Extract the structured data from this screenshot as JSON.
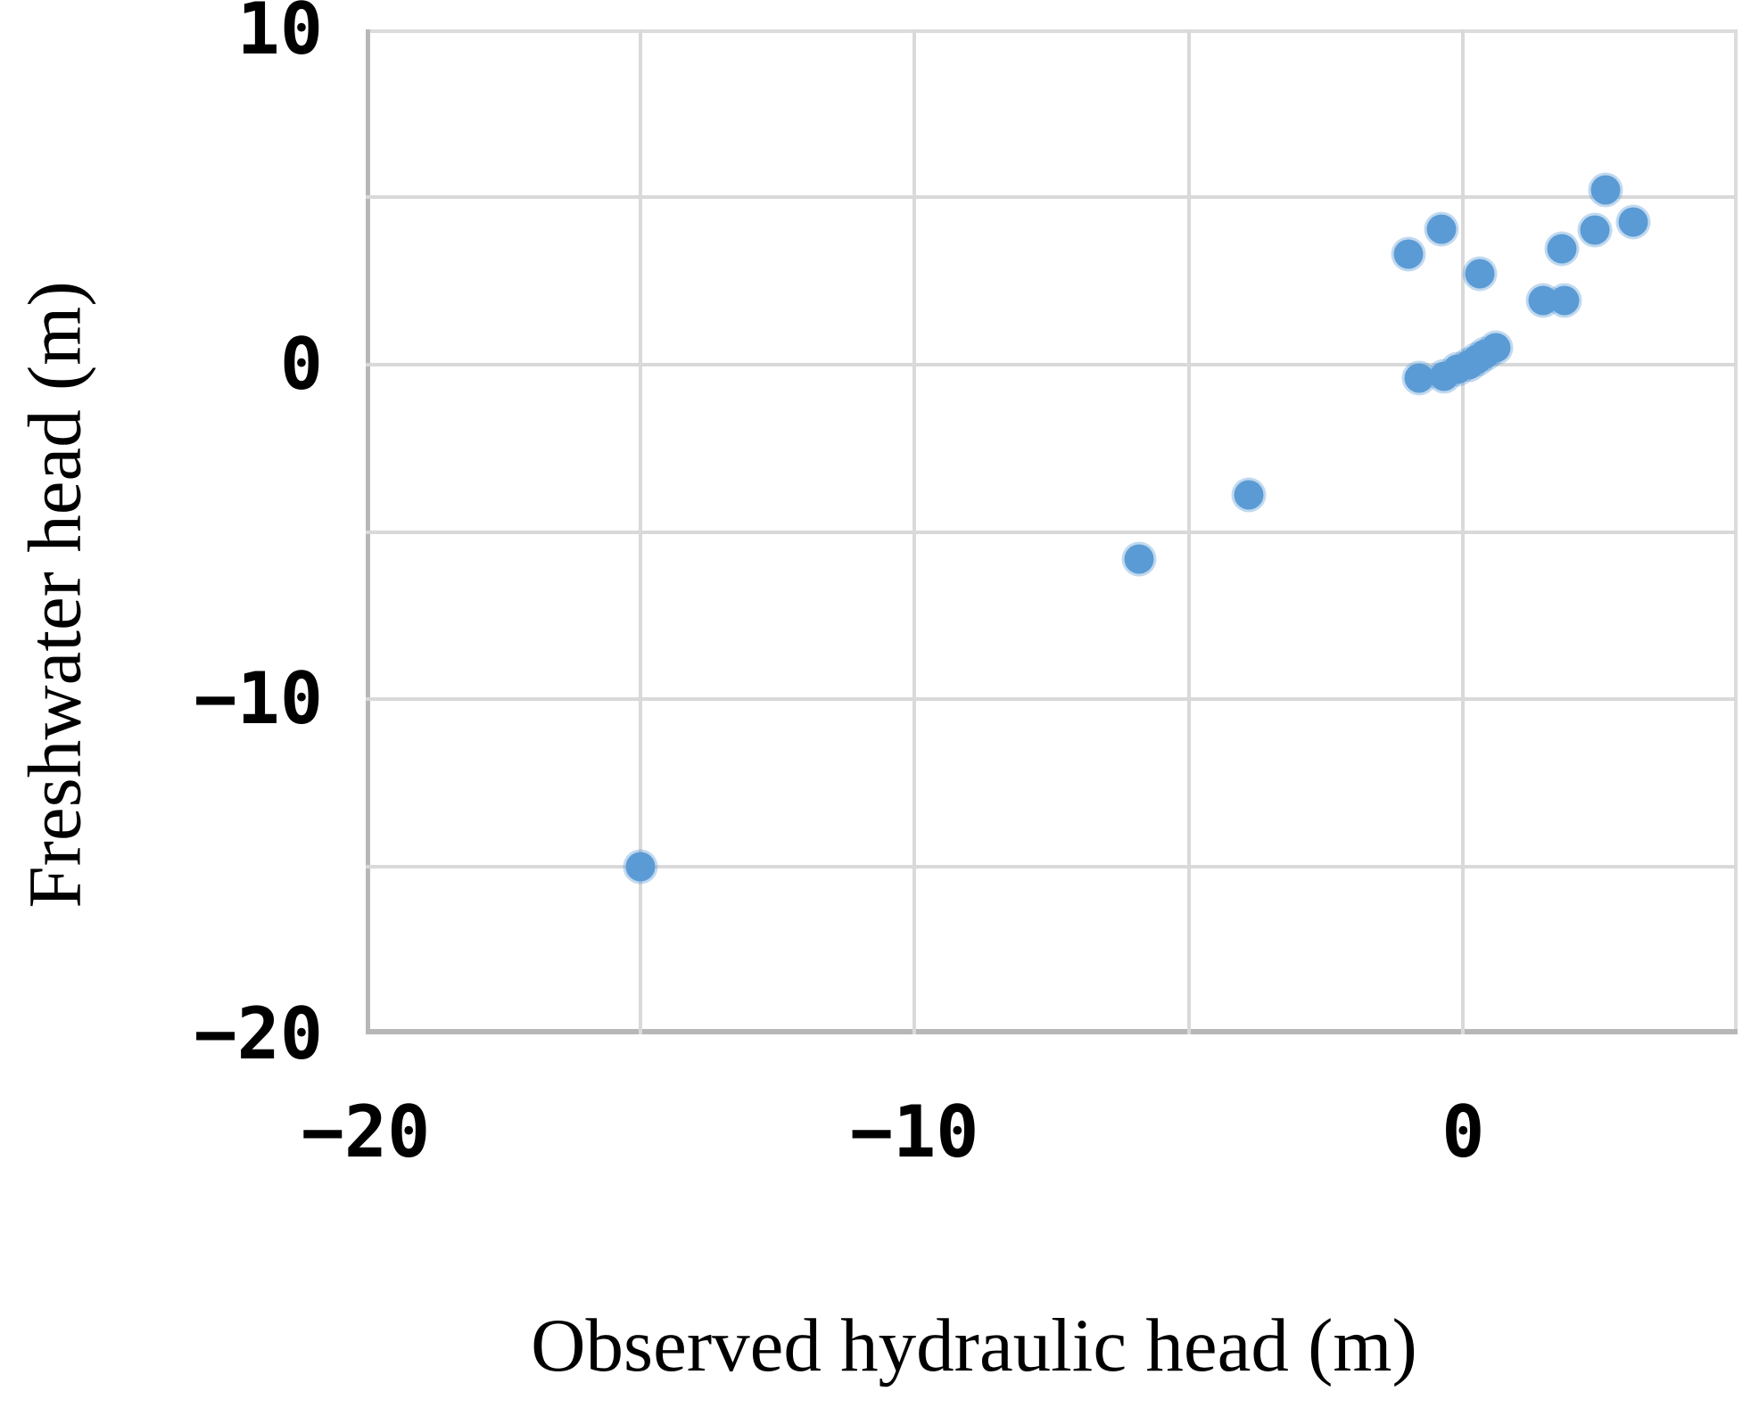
{
  "chart_data": {
    "type": "scatter",
    "title": "",
    "xlabel": "Observed hydraulic head (m)",
    "ylabel": "Freshwater head (m)",
    "xlim": [
      -20,
      5
    ],
    "ylim": [
      -20,
      10
    ],
    "grid": true,
    "grid_step": 5,
    "legend": "none",
    "x_ticks": [
      {
        "value": -20,
        "label": "−20"
      },
      {
        "value": -10,
        "label": "−10"
      },
      {
        "value": 0,
        "label": "0"
      }
    ],
    "y_ticks": [
      {
        "value": 10,
        "label": "10"
      },
      {
        "value": 0,
        "label": "0"
      },
      {
        "value": -10,
        "label": "−10"
      },
      {
        "value": -20,
        "label": "−20"
      }
    ],
    "marker_color": "#5B9BD5",
    "gridline_color": "#D9D9D9",
    "frame_color_light": "#DCDCDC",
    "frame_color_dark": "#B7B7B7",
    "points": [
      {
        "x": -15,
        "y": -15
      },
      {
        "x": -5.9,
        "y": -5.8
      },
      {
        "x": -3.9,
        "y": -3.9
      },
      {
        "x": -0.8,
        "y": -0.4
      },
      {
        "x": -0.35,
        "y": -0.35
      },
      {
        "x": -0.1,
        "y": -0.15
      },
      {
        "x": 0.1,
        "y": 0.0
      },
      {
        "x": 0.25,
        "y": 0.15
      },
      {
        "x": 0.4,
        "y": 0.3
      },
      {
        "x": 0.6,
        "y": 0.5
      },
      {
        "x": 1.45,
        "y": 1.9
      },
      {
        "x": 1.85,
        "y": 1.9
      },
      {
        "x": 0.3,
        "y": 2.7
      },
      {
        "x": -1.0,
        "y": 3.3
      },
      {
        "x": -0.4,
        "y": 4.05
      },
      {
        "x": 1.8,
        "y": 3.45
      },
      {
        "x": 2.4,
        "y": 4.0
      },
      {
        "x": 3.1,
        "y": 4.25
      },
      {
        "x": 2.6,
        "y": 5.2
      }
    ]
  }
}
